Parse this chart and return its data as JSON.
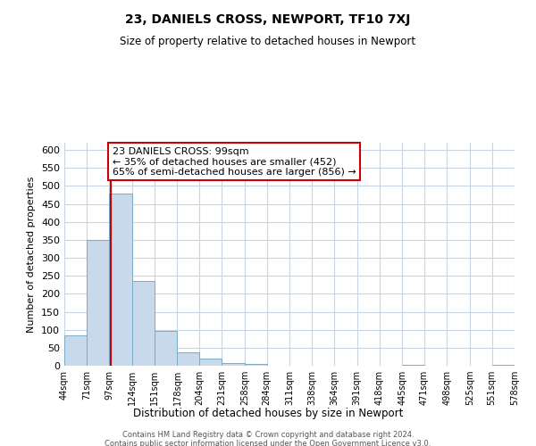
{
  "title": "23, DANIELS CROSS, NEWPORT, TF10 7XJ",
  "subtitle": "Size of property relative to detached houses in Newport",
  "xlabel": "Distribution of detached houses by size in Newport",
  "ylabel": "Number of detached properties",
  "bar_edges": [
    44,
    71,
    97,
    124,
    151,
    178,
    204,
    231,
    258,
    284,
    311,
    338,
    364,
    391,
    418,
    445,
    471,
    498,
    525,
    551,
    578
  ],
  "bar_heights": [
    84,
    350,
    478,
    235,
    97,
    37,
    19,
    8,
    6,
    0,
    0,
    0,
    0,
    0,
    0,
    2,
    0,
    0,
    0,
    2
  ],
  "bar_color": "#c8d9ec",
  "bar_edge_color": "#7aaac8",
  "property_line_x": 99,
  "property_line_color": "#cc0000",
  "ylim": [
    0,
    620
  ],
  "yticks": [
    0,
    50,
    100,
    150,
    200,
    250,
    300,
    350,
    400,
    450,
    500,
    550,
    600
  ],
  "annotation_title": "23 DANIELS CROSS: 99sqm",
  "annotation_line1": "← 35% of detached houses are smaller (452)",
  "annotation_line2": "65% of semi-detached houses are larger (856) →",
  "annotation_box_color": "#ffffff",
  "annotation_box_edge_color": "#cc0000",
  "footer_line1": "Contains HM Land Registry data © Crown copyright and database right 2024.",
  "footer_line2": "Contains public sector information licensed under the Open Government Licence v3.0.",
  "background_color": "#ffffff",
  "grid_color": "#c8d4e0"
}
